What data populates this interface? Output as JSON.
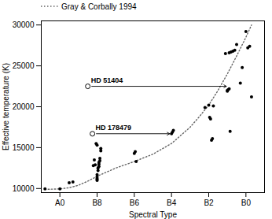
{
  "chart_data": {
    "type": "scatter",
    "xlabel": "Spectral Type",
    "ylabel": "Effective temperature (K)",
    "xlim": [
      -1.0,
      11.0
    ],
    "ylim": [
      9500,
      30500
    ],
    "xticks": [
      {
        "value": 0,
        "label": "A0"
      },
      {
        "value": 2,
        "label": "B8"
      },
      {
        "value": 4,
        "label": "B6"
      },
      {
        "value": 6,
        "label": "B4"
      },
      {
        "value": 8,
        "label": "B2"
      },
      {
        "value": 10,
        "label": "B0"
      }
    ],
    "yticks": [
      10000,
      15000,
      20000,
      25000,
      30000
    ],
    "grid": false,
    "legend": "upper left",
    "series": [
      {
        "name": "Gray & Corbally 1994",
        "type": "line",
        "line_style": "dotted",
        "color": "#666666",
        "x": [
          -0.8,
          0.0,
          0.5,
          1.0,
          1.5,
          2.0,
          3.0,
          4.0,
          5.0,
          6.0,
          7.0,
          7.5,
          8.0,
          8.5,
          9.0,
          9.5,
          10.0,
          10.3
        ],
        "values": [
          9900,
          9950,
          10100,
          10400,
          10900,
          11500,
          12500,
          13300,
          14200,
          15500,
          17500,
          18800,
          20200,
          22000,
          24000,
          26200,
          28500,
          30000
        ]
      },
      {
        "type": "scatter",
        "marker": "circle",
        "color": "#000000",
        "x": [
          -0.8,
          0.0,
          0.5,
          0.7,
          1.8,
          1.85,
          1.9,
          1.95,
          2.0,
          2.0,
          2.0,
          2.0,
          2.0,
          2.0,
          2.05,
          2.05,
          2.1,
          2.1,
          2.1,
          2.15,
          2.15,
          2.2,
          2.2,
          4.0,
          4.05,
          4.1,
          6.0,
          6.05,
          6.1,
          7.8,
          8.0,
          8.05,
          8.1,
          8.15,
          8.2,
          8.25,
          8.9,
          9.0,
          9.0,
          9.05,
          9.1,
          9.15,
          9.1,
          9.2,
          9.3,
          9.4,
          9.5,
          9.7,
          9.8,
          10.0,
          10.1,
          10.2,
          10.3
        ],
        "values": [
          9950,
          9950,
          10700,
          10800,
          12800,
          13500,
          12900,
          15500,
          15300,
          11000,
          11100,
          11200,
          11400,
          11700,
          12200,
          12500,
          12700,
          13000,
          13200,
          13400,
          13700,
          14600,
          14900,
          14300,
          14500,
          13300,
          16700,
          16900,
          17100,
          19900,
          20200,
          18700,
          18500,
          15900,
          16100,
          20100,
          26500,
          21900,
          22000,
          22100,
          22200,
          17000,
          26600,
          26700,
          26800,
          26900,
          27600,
          22900,
          24800,
          29200,
          27200,
          27400,
          21200
        ]
      }
    ],
    "annotations": [
      {
        "text": "HD 51404",
        "x": 1.5,
        "y": 22500,
        "arrow_x": 8.95,
        "marker": "open_circle"
      },
      {
        "text": "HD 178479",
        "x": 1.75,
        "y": 16700,
        "arrow_x": 5.9,
        "marker": "open_circle"
      }
    ]
  }
}
